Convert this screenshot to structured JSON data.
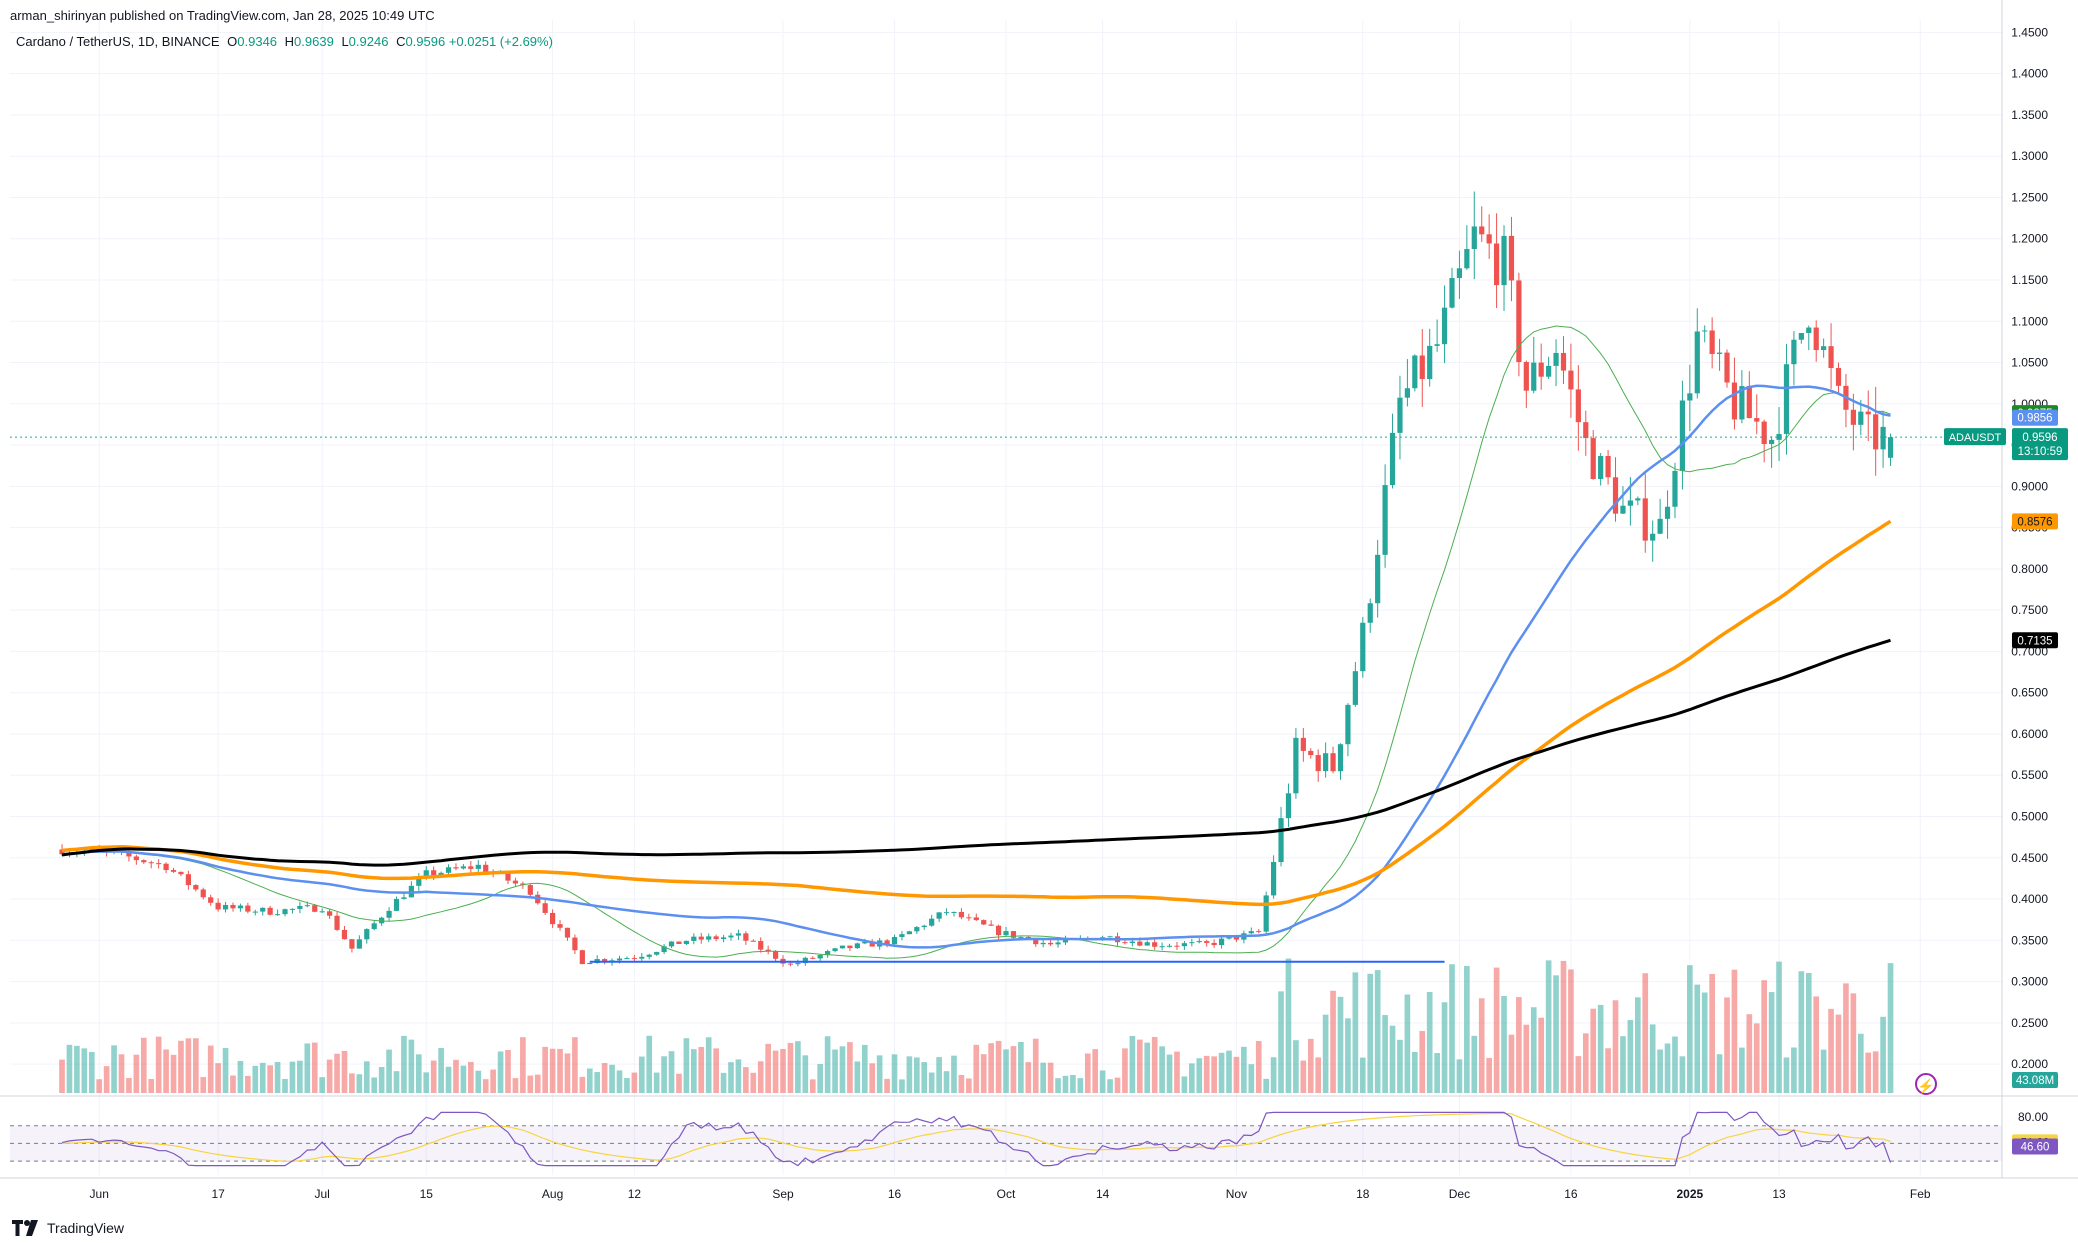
{
  "header": {
    "publisher": "arman_shirinyan published on TradingView.com, Jan 28, 2025 10:49 UTC",
    "symbol": "Cardano / TetherUS, 1D, BINANCE",
    "open_label": "O",
    "open": "0.9346",
    "high_label": "H",
    "high": "0.9639",
    "low_label": "L",
    "low": "0.9246",
    "close_label": "C",
    "close": "0.9596",
    "change": "+0.0251 (+2.69%)"
  },
  "branding": {
    "name": "TradingView",
    "logo_icon": "tradingview-logo-icon"
  },
  "colors": {
    "up": "#26a69a",
    "down": "#ef5350",
    "ma_short": "#4caf50",
    "ma_blue": "#5b8ff0",
    "ma_orange": "#ff9800",
    "ma_black": "#000000",
    "rsi": "#7e57c2",
    "rsi_ma": "#f7d442",
    "support": "#2962ff"
  },
  "chart_data": {
    "type": "line",
    "title": "Cardano / TetherUS, 1D, BINANCE",
    "y_scale": "price (USDT)",
    "ylim": [
      0.165,
      1.465
    ],
    "price_ticks": [
      "1.4500",
      "1.4000",
      "1.3500",
      "1.3000",
      "1.2500",
      "1.2000",
      "1.1500",
      "1.1000",
      "1.0500",
      "1.0000",
      "0.9500",
      "0.9000",
      "0.8500",
      "0.8000",
      "0.7500",
      "0.7000",
      "0.6500",
      "0.6000",
      "0.5500",
      "0.5000",
      "0.4500",
      "0.4000",
      "0.3500",
      "0.3000",
      "0.2500",
      "0.2000"
    ],
    "x_ticks": [
      "Jun",
      "17",
      "Jul",
      "15",
      "Aug",
      "12",
      "Sep",
      "16",
      "Oct",
      "14",
      "Nov",
      "18",
      "Dec",
      "16",
      "2025",
      "13",
      "Feb"
    ],
    "close_series": [
      [
        "2024-05-27",
        0.46
      ],
      [
        "2024-06-03",
        0.455
      ],
      [
        "2024-06-10",
        0.44
      ],
      [
        "2024-06-17",
        0.39
      ],
      [
        "2024-06-24",
        0.385
      ],
      [
        "2024-07-01",
        0.39
      ],
      [
        "2024-07-05",
        0.34
      ],
      [
        "2024-07-10",
        0.39
      ],
      [
        "2024-07-15",
        0.43
      ],
      [
        "2024-07-22",
        0.44
      ],
      [
        "2024-07-29",
        0.41
      ],
      [
        "2024-08-05",
        0.325
      ],
      [
        "2024-08-12",
        0.33
      ],
      [
        "2024-08-19",
        0.35
      ],
      [
        "2024-08-26",
        0.355
      ],
      [
        "2024-09-02",
        0.32
      ],
      [
        "2024-09-09",
        0.34
      ],
      [
        "2024-09-16",
        0.35
      ],
      [
        "2024-09-23",
        0.385
      ],
      [
        "2024-09-30",
        0.36
      ],
      [
        "2024-10-07",
        0.345
      ],
      [
        "2024-10-14",
        0.355
      ],
      [
        "2024-10-21",
        0.345
      ],
      [
        "2024-10-28",
        0.345
      ],
      [
        "2024-11-04",
        0.36
      ],
      [
        "2024-11-09",
        0.58
      ],
      [
        "2024-11-14",
        0.56
      ],
      [
        "2024-11-18",
        0.72
      ],
      [
        "2024-11-23",
        1.0
      ],
      [
        "2024-11-28",
        1.07
      ],
      [
        "2024-12-03",
        1.2
      ],
      [
        "2024-12-07",
        1.17
      ],
      [
        "2024-12-10",
        1.02
      ],
      [
        "2024-12-14",
        1.07
      ],
      [
        "2024-12-18",
        0.95
      ],
      [
        "2024-12-23",
        0.87
      ],
      [
        "2024-12-28",
        0.85
      ],
      [
        "2025-01-02",
        1.08
      ],
      [
        "2025-01-07",
        1.0
      ],
      [
        "2025-01-12",
        0.96
      ],
      [
        "2025-01-17",
        1.12
      ],
      [
        "2025-01-21",
        1.0
      ],
      [
        "2025-01-25",
        0.96
      ],
      [
        "2025-01-28",
        0.9596
      ]
    ],
    "series": [
      {
        "name": "ADAUSDT",
        "value": 0.9596,
        "countdown": "13:10:59"
      },
      {
        "value": 0.9875
      },
      {
        "value": 0.9856
      },
      {
        "value": 0.8576
      },
      {
        "value": 0.7135
      }
    ],
    "support_line": 0.324,
    "volume": {
      "value": "43.08M"
    },
    "rsi": {
      "ticks": [
        "80.00"
      ],
      "value": 46.6,
      "value_ma": 51.23
    }
  },
  "axis_labels": {
    "last_price_symbol": "ADAUSDT",
    "last_price": "0.9596",
    "countdown": "13:10:59",
    "ma_green": "0.9875",
    "ma_blue": "0.9856",
    "ma_orange": "0.8576",
    "ma_black": "0.7135",
    "volume": "43.08M",
    "rsi_ma": "51.23",
    "rsi": "46.60",
    "rsi_tick": "80.00"
  }
}
